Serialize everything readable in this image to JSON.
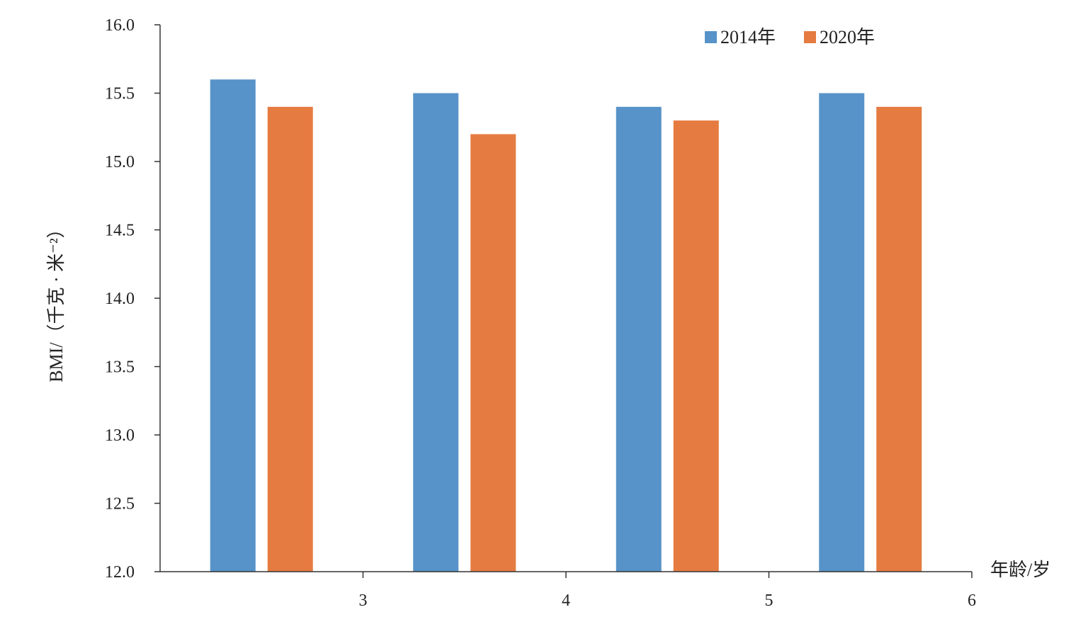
{
  "chart_data": {
    "type": "bar",
    "categories": [
      "3",
      "4",
      "5",
      "6"
    ],
    "series": [
      {
        "name": "2014年",
        "color": "#5793C8",
        "values": [
          15.6,
          15.5,
          15.4,
          15.5
        ]
      },
      {
        "name": "2020年",
        "color": "#E57B41",
        "values": [
          15.4,
          15.2,
          15.3,
          15.4
        ]
      }
    ],
    "title": "",
    "xlabel": "年龄/岁",
    "ylabel": "BMI/（千克 · 米⁻²）",
    "ylim": [
      12.0,
      16.0
    ],
    "yticks": [
      "12.0",
      "12.5",
      "13.0",
      "13.5",
      "14.0",
      "14.5",
      "15.0",
      "15.5",
      "16.0"
    ],
    "legend_position": "top-right",
    "grid": false
  }
}
